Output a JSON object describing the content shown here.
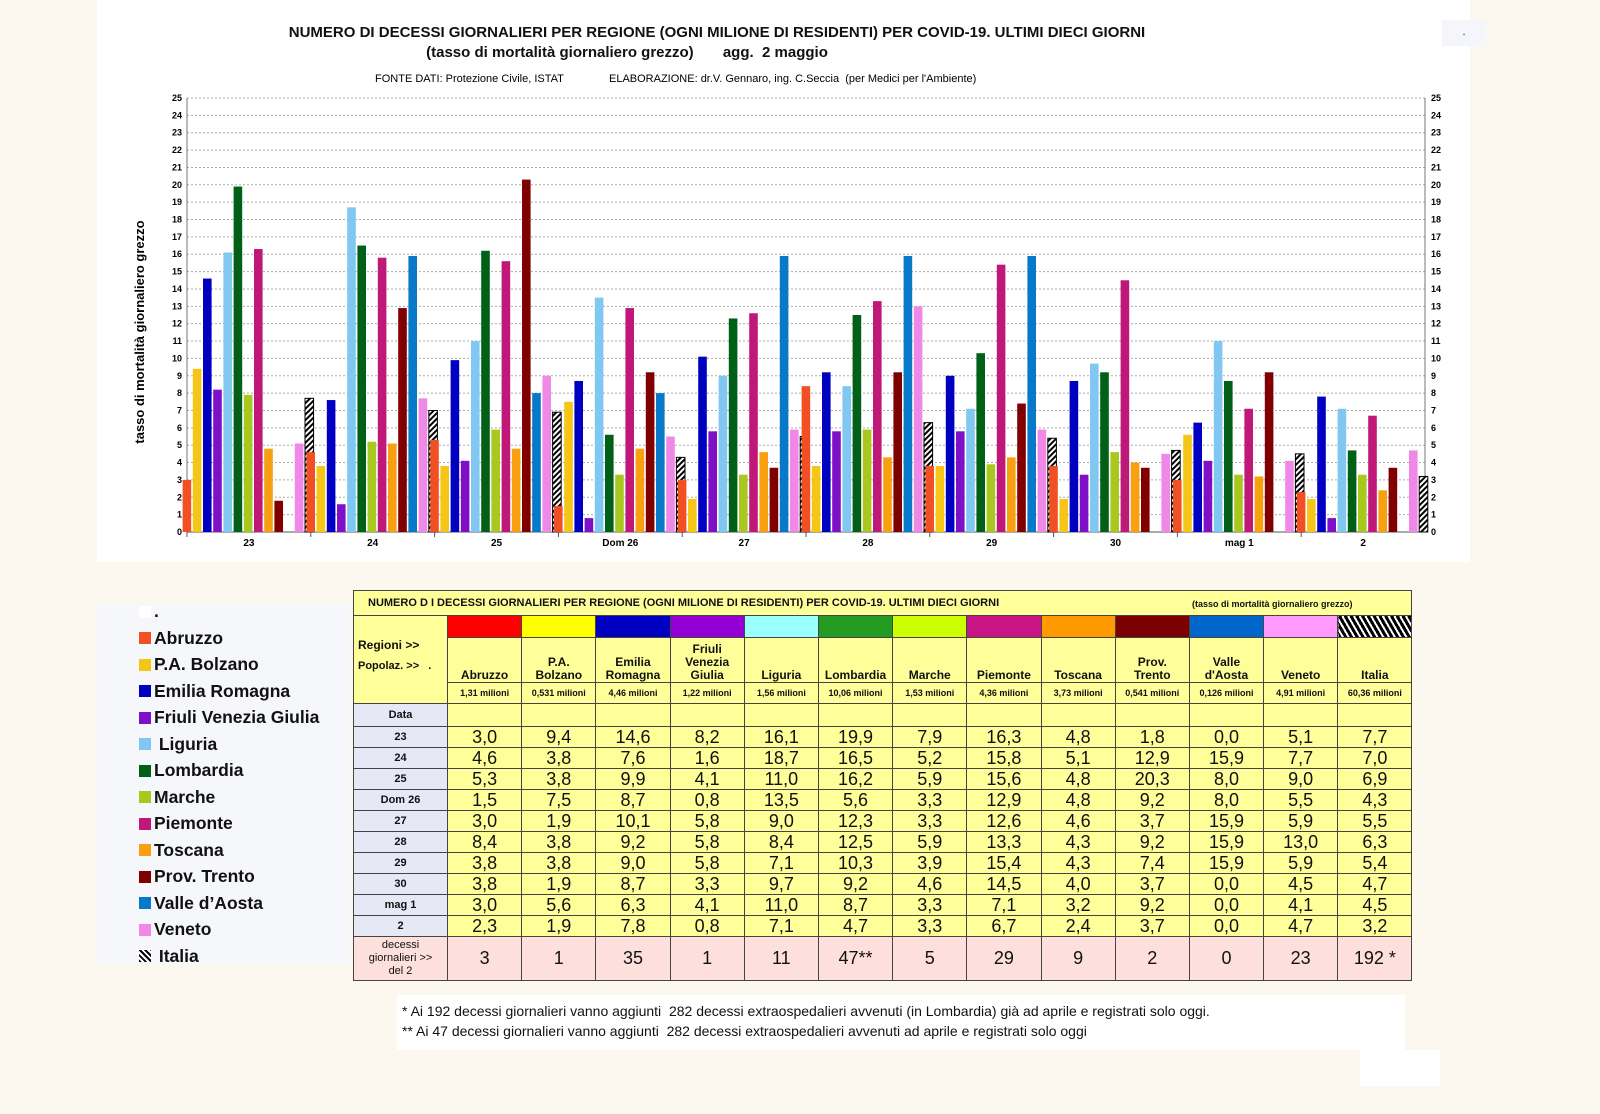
{
  "chart_data": {
    "type": "bar",
    "title": "NUMERO DI DECESSI GIORNALIERI PER REGIONE (OGNI MILIONE DI RESIDENTI) PER COVID-19. ULTIMI DIECI GIORNI",
    "subtitle": "(tasso di mortalità giornaliero grezzo)       agg.  2 maggio",
    "source": "FONTE DATI: Protezione Civile, ISTAT",
    "credits": "ELABORAZIONE: dr.V. Gennaro, ing. C.Seccia  (per Medici per l'Ambiente)",
    "corner_mark": ".",
    "ylabel": "tasso di mortalità giornaliero grezzo",
    "xlabel": "",
    "ylim": [
      0,
      25
    ],
    "yticks": [
      0,
      1,
      2,
      3,
      4,
      5,
      6,
      7,
      8,
      9,
      10,
      11,
      12,
      13,
      14,
      15,
      16,
      17,
      18,
      19,
      20,
      21,
      22,
      23,
      24,
      25
    ],
    "grid": true,
    "legend_position": "bottom-left",
    "categories": [
      "23",
      "24",
      "25",
      "Dom 26",
      "27",
      "28",
      "29",
      "30",
      "mag 1",
      "2"
    ],
    "series": [
      {
        "name": "Abruzzo",
        "color": "#f05023",
        "values": [
          3.0,
          4.6,
          5.3,
          1.5,
          3.0,
          8.4,
          3.8,
          3.8,
          3.0,
          2.3
        ]
      },
      {
        "name": "P.A. Bolzano",
        "color": "#f5c518",
        "values": [
          9.4,
          3.8,
          3.8,
          7.5,
          1.9,
          3.8,
          3.8,
          1.9,
          5.6,
          1.9
        ]
      },
      {
        "name": "Emilia Romagna",
        "color": "#0000c0",
        "values": [
          14.6,
          7.6,
          9.9,
          8.7,
          10.1,
          9.2,
          9.0,
          8.7,
          6.3,
          7.8
        ]
      },
      {
        "name": "Friuli Venezia Giulia",
        "color": "#8010c8",
        "values": [
          8.2,
          1.6,
          4.1,
          0.8,
          5.8,
          5.8,
          5.8,
          3.3,
          4.1,
          0.8
        ]
      },
      {
        "name": "Liguria",
        "color": "#80c8f2",
        "values": [
          16.1,
          18.7,
          11.0,
          13.5,
          9.0,
          8.4,
          7.1,
          9.7,
          11.0,
          7.1
        ]
      },
      {
        "name": "Lombardia",
        "color": "#006018",
        "values": [
          19.9,
          16.5,
          16.2,
          5.6,
          12.3,
          12.5,
          10.3,
          9.2,
          8.7,
          4.7
        ]
      },
      {
        "name": "Marche",
        "color": "#a8c820",
        "values": [
          7.9,
          5.2,
          5.9,
          3.3,
          3.3,
          5.9,
          3.9,
          4.6,
          3.3,
          3.3
        ]
      },
      {
        "name": "Piemonte",
        "color": "#c01878",
        "values": [
          16.3,
          15.8,
          15.6,
          12.9,
          12.6,
          13.3,
          15.4,
          14.5,
          7.1,
          6.7
        ]
      },
      {
        "name": "Toscana",
        "color": "#f8a010",
        "values": [
          4.8,
          5.1,
          4.8,
          4.8,
          4.6,
          4.3,
          4.3,
          4.0,
          3.2,
          2.4
        ]
      },
      {
        "name": "Prov. Trento",
        "color": "#800000",
        "values": [
          1.8,
          12.9,
          20.3,
          9.2,
          3.7,
          9.2,
          7.4,
          3.7,
          9.2,
          3.7
        ]
      },
      {
        "name": "Valle d’Aosta",
        "color": "#0878c8",
        "values": [
          0.0,
          15.9,
          8.0,
          8.0,
          15.9,
          15.9,
          15.9,
          0.0,
          0.0,
          0.0
        ]
      },
      {
        "name": "Veneto",
        "color": "#f088e8",
        "values": [
          5.1,
          7.7,
          9.0,
          5.5,
          5.9,
          13.0,
          5.9,
          4.5,
          4.1,
          4.7
        ]
      },
      {
        "name": "Italia",
        "color": "hatched-black",
        "values": [
          7.7,
          7.0,
          6.9,
          4.3,
          5.5,
          6.3,
          5.4,
          4.7,
          4.5,
          3.2
        ]
      }
    ]
  },
  "legend": {
    "blank_entry": ".",
    "italia_label": " Italia",
    "liguria_label": " Liguria"
  },
  "table": {
    "title": "NUMERO D I DECESSI GIORNALIERI PER REGIONE (OGNI MILIONE DI RESIDENTI)  PER COVID-19. ULTIMI DIECI GIORNI",
    "title_note": "(tasso di mortalità giornaliero grezzo)",
    "row_label_regions": "Regioni  >>",
    "row_label_pop": "Popolaz. >>   .",
    "row_label_date": "Data",
    "header_colors": [
      "#ff0000",
      "#ffff00",
      "#0000c0",
      "#9400d3",
      "#99ffff",
      "#239b23",
      "#ccff00",
      "#c71585",
      "#ff9900",
      "#7b0000",
      "#0066cc",
      "#ff99ff",
      "hatched"
    ],
    "regions": [
      "Abruzzo",
      "P.A.\nBolzano",
      "Emilia\nRomagna",
      "Friuli\nVenezia\nGiulia",
      "Liguria",
      "Lombardia",
      "Marche",
      "Piemonte",
      "Toscana",
      "Prov.\nTrento",
      "Valle\nd'Aosta",
      "Veneto",
      "Italia"
    ],
    "population": [
      "1,31 milioni",
      "0,531 milioni",
      "4,46 milioni",
      "1,22 milioni",
      "1,56 milioni",
      "10,06 milioni",
      "1,53 milioni",
      "4,36 milioni",
      "3,73 milioni",
      "0,541 milioni",
      "0,126 milioni",
      "4,91 milioni",
      "60,36 milioni"
    ],
    "rows": [
      {
        "date": "23",
        "values": [
          "3,0",
          "9,4",
          "14,6",
          "8,2",
          "16,1",
          "19,9",
          "7,9",
          "16,3",
          "4,8",
          "1,8",
          "0,0",
          "5,1",
          "7,7"
        ]
      },
      {
        "date": "24",
        "values": [
          "4,6",
          "3,8",
          "7,6",
          "1,6",
          "18,7",
          "16,5",
          "5,2",
          "15,8",
          "5,1",
          "12,9",
          "15,9",
          "7,7",
          "7,0"
        ]
      },
      {
        "date": "25",
        "values": [
          "5,3",
          "3,8",
          "9,9",
          "4,1",
          "11,0",
          "16,2",
          "5,9",
          "15,6",
          "4,8",
          "20,3",
          "8,0",
          "9,0",
          "6,9"
        ]
      },
      {
        "date": "Dom 26",
        "values": [
          "1,5",
          "7,5",
          "8,7",
          "0,8",
          "13,5",
          "5,6",
          "3,3",
          "12,9",
          "4,8",
          "9,2",
          "8,0",
          "5,5",
          "4,3"
        ]
      },
      {
        "date": "27",
        "values": [
          "3,0",
          "1,9",
          "10,1",
          "5,8",
          "9,0",
          "12,3",
          "3,3",
          "12,6",
          "4,6",
          "3,7",
          "15,9",
          "5,9",
          "5,5"
        ]
      },
      {
        "date": "28",
        "values": [
          "8,4",
          "3,8",
          "9,2",
          "5,8",
          "8,4",
          "12,5",
          "5,9",
          "13,3",
          "4,3",
          "9,2",
          "15,9",
          "13,0",
          "6,3"
        ]
      },
      {
        "date": "29",
        "values": [
          "3,8",
          "3,8",
          "9,0",
          "5,8",
          "7,1",
          "10,3",
          "3,9",
          "15,4",
          "4,3",
          "7,4",
          "15,9",
          "5,9",
          "5,4"
        ]
      },
      {
        "date": "30",
        "values": [
          "3,8",
          "1,9",
          "8,7",
          "3,3",
          "9,7",
          "9,2",
          "4,6",
          "14,5",
          "4,0",
          "3,7",
          "0,0",
          "4,5",
          "4,7"
        ]
      },
      {
        "date": "mag 1",
        "values": [
          "3,0",
          "5,6",
          "6,3",
          "4,1",
          "11,0",
          "8,7",
          "3,3",
          "7,1",
          "3,2",
          "9,2",
          "0,0",
          "4,1",
          "4,5"
        ]
      },
      {
        "date": "2",
        "values": [
          "2,3",
          "1,9",
          "7,8",
          "0,8",
          "7,1",
          "4,7",
          "3,3",
          "6,7",
          "2,4",
          "3,7",
          "0,0",
          "4,7",
          "3,2"
        ]
      }
    ],
    "deaths_label": "decessi\ngiornalieri  >>\ndel 2",
    "deaths": [
      "3",
      "1",
      "35",
      "1",
      "11",
      "47**",
      "5",
      "29",
      "9",
      "2",
      "0",
      "23",
      "192 *"
    ]
  },
  "footnotes": [
    "* Ai 192 decessi giornalieri vanno aggiunti  282 decessi extraospedalieri avvenuti (in Lombardia) già ad aprile e registrati solo oggi.",
    "** Ai 47 decessi giornalieri vanno aggiunti  282 decessi extraospedalieri avvenuti ad aprile e registrati solo oggi"
  ]
}
